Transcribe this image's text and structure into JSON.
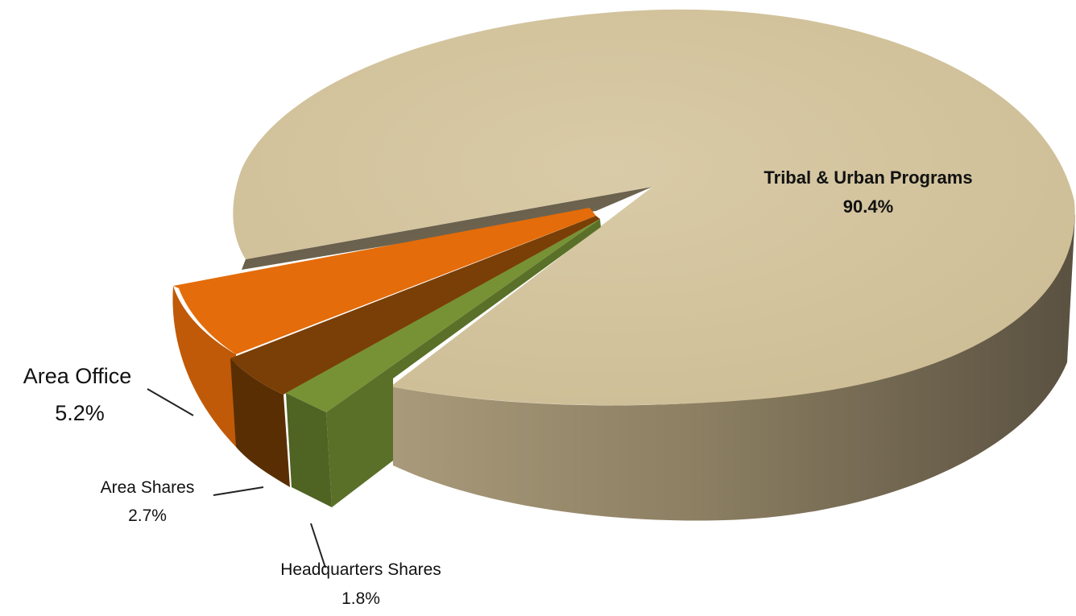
{
  "chart_data": {
    "type": "pie",
    "style": "3d-exploded",
    "series": [
      {
        "slices": [
          {
            "label": "Tribal & Urban Programs",
            "value": 90.4,
            "display": "90.4%",
            "color": "#D6C7A2"
          },
          {
            "label": "Area Office",
            "value": 5.2,
            "display": "5.2%",
            "color": "#E46C0A"
          },
          {
            "label": "Area Shares",
            "value": 2.7,
            "display": "2.7%",
            "color": "#7A3F06"
          },
          {
            "label": "Headquarters Shares",
            "value": 1.8,
            "display": "1.8%",
            "color": "#769235"
          }
        ]
      }
    ],
    "legend": "none"
  }
}
